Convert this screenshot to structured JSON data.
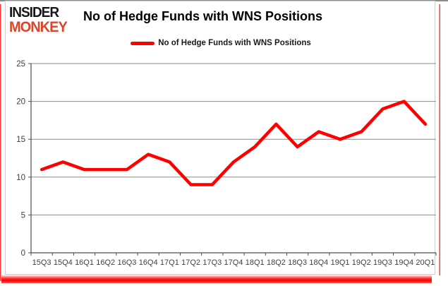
{
  "logo": {
    "line1": "INSIDER",
    "line2": "MONKEY"
  },
  "title": "No of Hedge Funds with WNS Positions",
  "legend": {
    "label": "No of Hedge Funds with WNS Positions"
  },
  "colors": {
    "line": "#ff0000",
    "logo_accent": "#d9472b",
    "frame_red": "#ff0000",
    "gridline": "#8a8a8a",
    "axis": "#4d4d4d",
    "tick_label": "#404040"
  },
  "chart_data": {
    "type": "line",
    "title": "No of Hedge Funds with WNS Positions",
    "categories": [
      "15Q3",
      "15Q4",
      "16Q1",
      "16Q2",
      "16Q3",
      "16Q4",
      "17Q1",
      "17Q2",
      "17Q3",
      "17Q4",
      "18Q1",
      "18Q2",
      "18Q3",
      "18Q4",
      "19Q1",
      "19Q2",
      "19Q3",
      "19Q4",
      "20Q1"
    ],
    "series": [
      {
        "name": "No of Hedge Funds with WNS Positions",
        "values": [
          11,
          12,
          11,
          11,
          11,
          13,
          12,
          9,
          9,
          12,
          14,
          17,
          14,
          16,
          15,
          16,
          19,
          20,
          17
        ]
      }
    ],
    "xlabel": "",
    "ylabel": "",
    "ylim": [
      0,
      25
    ],
    "yticks": [
      0,
      5,
      10,
      15,
      20,
      25
    ],
    "grid": true,
    "legend_position": "top"
  }
}
